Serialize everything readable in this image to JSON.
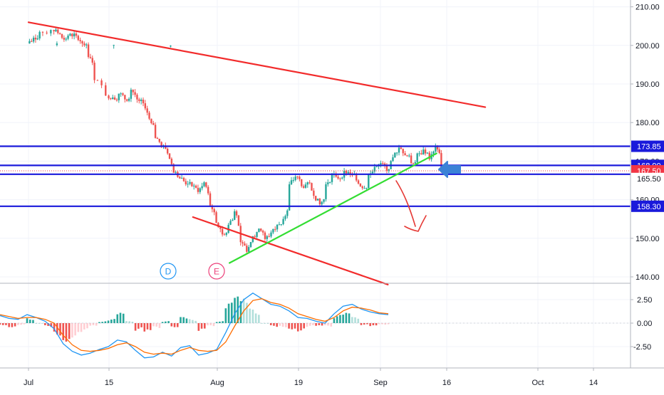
{
  "chart_data": {
    "type": "candlestick",
    "instrument_note": "",
    "time_axis": {
      "ticks": [
        "Jul",
        "15",
        "Aug",
        "19",
        "Sep",
        "16",
        "Oct",
        "14"
      ]
    },
    "price_axis": {
      "ticks": [
        "140.00",
        "150.00",
        "160.00",
        "170.00",
        "180.00",
        "190.00",
        "200.00",
        "210.00"
      ],
      "ylim": [
        138,
        212
      ]
    },
    "price_labels": [
      {
        "text": "173.85",
        "value": 173.85,
        "kind": "level",
        "color": "#1a1adb"
      },
      {
        "text": "168.90",
        "value": 168.9,
        "kind": "level",
        "color": "#1a1adb"
      },
      {
        "text": "167.50",
        "value": 167.5,
        "kind": "last",
        "color": "#f23645"
      },
      {
        "text": "165.50",
        "value": 165.5,
        "kind": "plain",
        "color": "#131722"
      },
      {
        "text": "158.30",
        "value": 158.3,
        "kind": "level",
        "color": "#1a1adb"
      }
    ],
    "horizontal_levels": [
      173.85,
      168.9,
      166.6,
      158.3
    ],
    "last_price": 167.5,
    "trendlines": [
      {
        "name": "upper-channel",
        "color": "#f22b2b",
        "from": [
          "Jul",
          206
        ],
        "to": [
          "Sep 14",
          184
        ]
      },
      {
        "name": "lower-channel",
        "color": "#f22b2b",
        "from": [
          "Jun 29",
          155.5
        ],
        "to": [
          "Aug 29",
          138
        ]
      },
      {
        "name": "support",
        "color": "#33dd33",
        "from": [
          "Aug 3",
          143.6
        ],
        "to": [
          "Sep 6",
          172
        ]
      }
    ],
    "markers": [
      {
        "label": "D",
        "color": "#2196f3"
      },
      {
        "label": "E",
        "color": "#ec407a"
      }
    ],
    "price_path": [
      [
        "Jun 30",
        200.5
      ],
      [
        "Jul 1",
        202
      ],
      [
        "Jul 2",
        203.5
      ],
      [
        "Jul 3",
        204
      ],
      [
        "Jul 5",
        203.2
      ],
      [
        "Jul 6",
        201.5
      ],
      [
        "Jul 7",
        203
      ],
      [
        "Jul 8",
        202.5
      ],
      [
        "Jul 9",
        200.5
      ],
      [
        "Jul 10",
        197
      ],
      [
        "Jul 11",
        191
      ],
      [
        "Jul 12",
        187
      ],
      [
        "Jul 14",
        186.5
      ],
      [
        "Jul 15",
        187.5
      ],
      [
        "Jul 16",
        186
      ],
      [
        "Jul 17",
        188.5
      ],
      [
        "Jul 18",
        186
      ],
      [
        "Jul 19",
        185
      ],
      [
        "Jul 20",
        181
      ],
      [
        "Jul 21",
        176
      ],
      [
        "Jul 22",
        174
      ],
      [
        "Jul 23",
        172
      ],
      [
        "Jul 24",
        167
      ],
      [
        "Jul 25",
        165.5
      ],
      [
        "Jul 26",
        164
      ],
      [
        "Jul 27",
        163.5
      ],
      [
        "Jul 28",
        162
      ],
      [
        "Jul 29",
        164.5
      ],
      [
        "Jul 30",
        158.5
      ],
      [
        "Jul 31",
        154
      ],
      [
        "Aug 1",
        151
      ],
      [
        "Aug 2",
        153.5
      ],
      [
        "Aug 3",
        157
      ],
      [
        "Aug 4",
        149
      ],
      [
        "Aug 5",
        146.5
      ],
      [
        "Aug 6",
        150.5
      ],
      [
        "Aug 7",
        152.5
      ],
      [
        "Aug 8",
        149.8
      ],
      [
        "Aug 9",
        151.5
      ],
      [
        "Aug 10",
        153.5
      ],
      [
        "Aug 11",
        155
      ],
      [
        "Aug 12",
        164
      ],
      [
        "Aug 13",
        166
      ],
      [
        "Aug 14",
        163.5
      ],
      [
        "Aug 15",
        164.5
      ],
      [
        "Aug 16",
        161
      ],
      [
        "Aug 17",
        158.8
      ],
      [
        "Aug 18",
        164
      ],
      [
        "Aug 19",
        166.5
      ],
      [
        "Aug 20",
        165.5
      ],
      [
        "Aug 21",
        167.5
      ],
      [
        "Aug 22",
        166.5
      ],
      [
        "Aug 23",
        165
      ],
      [
        "Aug 24",
        163
      ],
      [
        "Aug 25",
        166.5
      ],
      [
        "Aug 26",
        168.5
      ],
      [
        "Aug 27",
        169.5
      ],
      [
        "Aug 28",
        167.5
      ],
      [
        "Aug 29",
        171
      ],
      [
        "Aug 30",
        173.5
      ],
      [
        "Aug 31",
        171.5
      ],
      [
        "Sep 1",
        169.5
      ],
      [
        "Sep 2",
        172
      ],
      [
        "Sep 3",
        173
      ],
      [
        "Sep 4",
        170.5
      ],
      [
        "Sep 5",
        174
      ],
      [
        "Sep 6",
        167.5
      ]
    ],
    "projection_arrow_color": "#e53935",
    "pointer_arrow_color": "#3b82d6",
    "macd": {
      "axis_ticks": [
        "2.50",
        "0.00",
        "-2.50"
      ],
      "ylim": [
        -4.8,
        4.2
      ],
      "macd_line": [
        0.8,
        0.5,
        0.4,
        0.9,
        0.6,
        0.2,
        -0.6,
        -2.2,
        -3.0,
        -3.4,
        -3.2,
        -2.8,
        -2.5,
        -1.8,
        -2.0,
        -2.9,
        -3.7,
        -3.6,
        -3.1,
        -3.5,
        -2.6,
        -2.4,
        -3.4,
        -3.2,
        -2.8,
        -1.0,
        1.0,
        2.5,
        3.2,
        2.6,
        2.0,
        1.8,
        1.3,
        0.6,
        0.5,
        0.2,
        0.0,
        1.0,
        1.8,
        2.0,
        1.5,
        1.2,
        1.0,
        0.9
      ],
      "signal_line": [
        0.9,
        0.7,
        0.5,
        0.6,
        0.6,
        0.4,
        0.0,
        -1.3,
        -2.3,
        -2.9,
        -3.0,
        -2.9,
        -2.7,
        -2.3,
        -2.1,
        -2.5,
        -3.1,
        -3.3,
        -3.2,
        -3.3,
        -2.9,
        -2.6,
        -2.9,
        -3.0,
        -2.9,
        -2.0,
        -0.3,
        1.3,
        2.4,
        2.6,
        2.2,
        2.0,
        1.6,
        1.0,
        0.7,
        0.4,
        0.2,
        0.6,
        1.3,
        1.7,
        1.6,
        1.4,
        1.1,
        1.0
      ]
    }
  }
}
